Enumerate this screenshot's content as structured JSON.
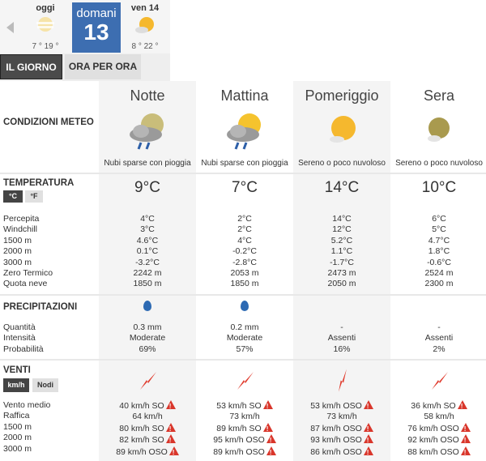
{
  "days": [
    {
      "name": "oggi",
      "temps": "7 ° 19 °",
      "icon": "hazy-sun-icon"
    },
    {
      "name": "domani",
      "number": "13",
      "selected": true
    },
    {
      "name": "ven 14",
      "temps": "8 ° 22 °",
      "icon": "sun-cloud-icon"
    }
  ],
  "tabs": {
    "day": "IL GIORNO",
    "hourly": "ORA PER ORA"
  },
  "conditions": {
    "label": "CONDIZIONI METEO",
    "periods": [
      {
        "name": "Notte",
        "desc": "Nubi sparse con pioggia",
        "icon": "moon-cloud-rain-icon"
      },
      {
        "name": "Mattina",
        "desc": "Nubi sparse con pioggia",
        "icon": "sun-cloud-rain-icon"
      },
      {
        "name": "Pomeriggio",
        "desc": "Sereno o poco nuvoloso",
        "icon": "sun-small-cloud-icon"
      },
      {
        "name": "Sera",
        "desc": "Sereno o poco nuvoloso",
        "icon": "moon-small-cloud-icon"
      }
    ]
  },
  "temperature": {
    "label": "TEMPERATURA",
    "unit_c": "°C",
    "unit_f": "°F",
    "main": [
      "9°C",
      "7°C",
      "14°C",
      "10°C"
    ],
    "row_labels": [
      "Percepita",
      "Windchill",
      "1500 m",
      "2000 m",
      "3000 m",
      "Zero Termico",
      "Quota neve"
    ],
    "values": [
      [
        "4°C",
        "3°C",
        "4.6°C",
        "0.1°C",
        "-3.2°C",
        "2242 m",
        "1850 m"
      ],
      [
        "2°C",
        "2°C",
        "4°C",
        "-0.2°C",
        "-2.8°C",
        "2053 m",
        "1850 m"
      ],
      [
        "14°C",
        "12°C",
        "5.2°C",
        "1.1°C",
        "-1.7°C",
        "2473 m",
        "2050 m"
      ],
      [
        "6°C",
        "5°C",
        "4.7°C",
        "1.8°C",
        "-0.6°C",
        "2524 m",
        "2300 m"
      ]
    ]
  },
  "precipitation": {
    "label": "PRECIPITAZIONI",
    "row_labels": [
      "Quantità",
      "Intensità",
      "Probabilità"
    ],
    "drops": [
      true,
      true,
      false,
      false
    ],
    "values": [
      [
        "0.3 mm",
        "Moderate",
        "69%"
      ],
      [
        "0.2 mm",
        "Moderate",
        "57%"
      ],
      [
        "-",
        "Assenti",
        "16%"
      ],
      [
        "-",
        "Assenti",
        "2%"
      ]
    ]
  },
  "winds": {
    "label": "VENTI",
    "unit_kmh": "km/h",
    "unit_knots": "Nodi",
    "arrow_color": "#e03a2c",
    "directions": [
      "SO",
      "SO",
      "OSO",
      "SO"
    ],
    "row_labels": [
      "Vento medio",
      "Raffica",
      "1500 m",
      "2000 m",
      "3000 m"
    ],
    "values": [
      [
        "40 km/h  SO",
        "64 km/h",
        "80 km/h SO",
        "82 km/h SO",
        "89 km/h OSO"
      ],
      [
        "53 km/h  SO",
        "73 km/h",
        "89 km/h SO",
        "95 km/h OSO",
        "89 km/h OSO"
      ],
      [
        "53 km/h  OSO",
        "73 km/h",
        "87 km/h OSO",
        "93 km/h OSO",
        "86 km/h OSO"
      ],
      [
        "36 km/h  SO",
        "58 km/h",
        "76 km/h OSO",
        "92 km/h OSO",
        "88 km/h OSO"
      ]
    ],
    "warnings": [
      [
        true,
        false,
        true,
        true,
        true
      ],
      [
        true,
        false,
        true,
        true,
        true
      ],
      [
        true,
        false,
        true,
        true,
        true
      ],
      [
        true,
        false,
        true,
        true,
        true
      ]
    ]
  }
}
